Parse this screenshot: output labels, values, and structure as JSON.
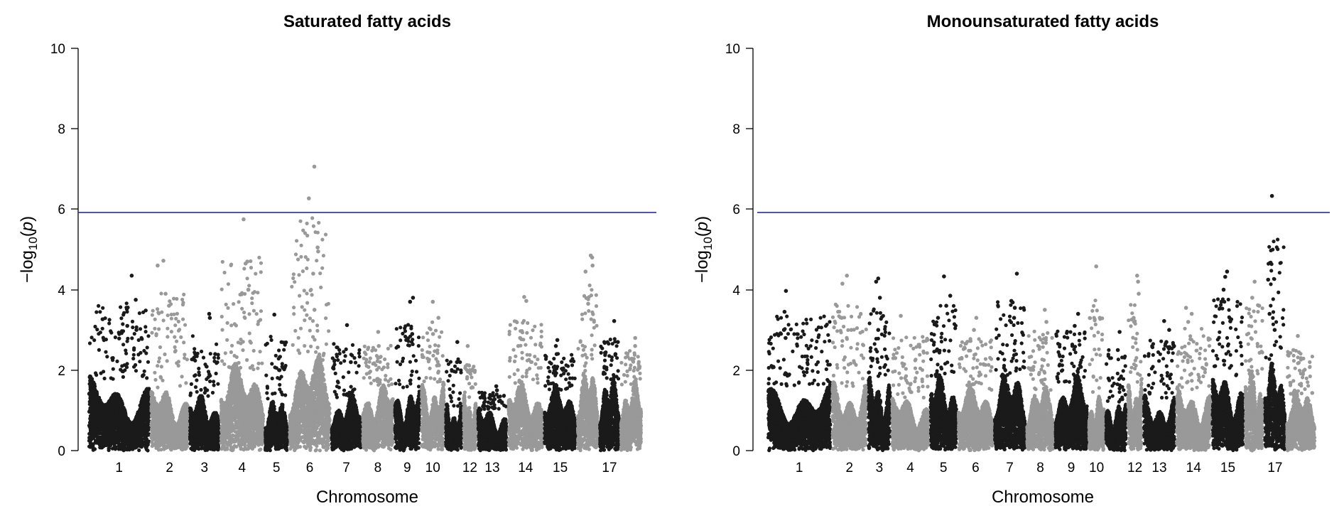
{
  "colors": {
    "odd_chromosome": "#1a1a1a",
    "even_chromosome": "#999999",
    "threshold_line": "#2b2bb0"
  },
  "chart_data": [
    {
      "type": "scatter",
      "title": "Saturated fatty acids",
      "xlabel": "Chromosome",
      "ylabel_prefix": "−log",
      "ylabel_sub": "10",
      "ylabel_arg": "p",
      "ylim": [
        0,
        10
      ],
      "yticks": [
        "0",
        "2",
        "4",
        "6",
        "8",
        "10"
      ],
      "threshold": 5.92,
      "grid": false,
      "chromosome_labels": [
        "1",
        "2",
        "3",
        "4",
        "5",
        "6",
        "7",
        "8",
        "9",
        "10",
        "12",
        "13",
        "14",
        "15",
        "17"
      ],
      "chromosomes": [
        {
          "id": 1,
          "label": "1",
          "start": 0.0,
          "end": 0.112,
          "peak": 4.35,
          "dense_top": 1.7,
          "seed": 11,
          "extra": [
            3.75,
            3.1,
            3.0
          ]
        },
        {
          "id": 2,
          "label": "2",
          "start": 0.112,
          "end": 0.182,
          "peak": 4.72,
          "dense_top": 1.5,
          "seed": 12,
          "extra": [
            4.6,
            3.9,
            3.6
          ]
        },
        {
          "id": 3,
          "label": "3",
          "start": 0.182,
          "end": 0.238,
          "peak": 3.4,
          "dense_top": 1.3,
          "seed": 13,
          "extra": [
            3.3,
            2.4
          ]
        },
        {
          "id": 4,
          "label": "4",
          "start": 0.238,
          "end": 0.318,
          "peak": 5.75,
          "dense_top": 2.0,
          "seed": 14,
          "extra": [
            4.65,
            4.7,
            4.0
          ]
        },
        {
          "id": 5,
          "label": "5",
          "start": 0.318,
          "end": 0.362,
          "peak": 3.38,
          "dense_top": 1.2,
          "seed": 15,
          "extra": [
            2.0
          ]
        },
        {
          "id": 6,
          "label": "6",
          "start": 0.362,
          "end": 0.438,
          "peak": 7.06,
          "dense_top": 2.2,
          "seed": 16,
          "extra": [
            6.27,
            5.05,
            4.95,
            4.4,
            3.5
          ]
        },
        {
          "id": 7,
          "label": "7",
          "start": 0.438,
          "end": 0.494,
          "peak": 3.12,
          "dense_top": 1.3,
          "seed": 17,
          "extra": [
            2.2
          ]
        },
        {
          "id": 8,
          "label": "8",
          "start": 0.494,
          "end": 0.552,
          "peak": 2.95,
          "dense_top": 1.6,
          "seed": 18,
          "extra": [
            2.6
          ]
        },
        {
          "id": 9,
          "label": "9",
          "start": 0.552,
          "end": 0.6,
          "peak": 3.8,
          "dense_top": 1.5,
          "seed": 19,
          "extra": [
            3.7,
            2.9
          ]
        },
        {
          "id": 10,
          "label": "10",
          "start": 0.6,
          "end": 0.644,
          "peak": 3.7,
          "dense_top": 1.7,
          "seed": 20,
          "extra": [
            3.3,
            2.9
          ]
        },
        {
          "id": 11,
          "label": "",
          "start": 0.644,
          "end": 0.676,
          "peak": 2.7,
          "dense_top": 1.1,
          "seed": 21,
          "extra": [
            2.2
          ]
        },
        {
          "id": 12,
          "label": "12",
          "start": 0.676,
          "end": 0.702,
          "peak": 2.6,
          "dense_top": 1.3,
          "seed": 22,
          "extra": [
            2.0
          ]
        },
        {
          "id": 13,
          "label": "13",
          "start": 0.702,
          "end": 0.757,
          "peak": 1.6,
          "dense_top": 1.0,
          "seed": 23,
          "extra": [
            1.5
          ]
        },
        {
          "id": 14,
          "label": "14",
          "start": 0.757,
          "end": 0.822,
          "peak": 3.82,
          "dense_top": 1.6,
          "seed": 24,
          "extra": [
            3.72,
            2.8,
            2.6
          ]
        },
        {
          "id": 15,
          "label": "15",
          "start": 0.822,
          "end": 0.882,
          "peak": 2.75,
          "dense_top": 1.5,
          "seed": 25,
          "extra": [
            2.6,
            2.4
          ]
        },
        {
          "id": 16,
          "label": "",
          "start": 0.882,
          "end": 0.922,
          "peak": 4.85,
          "dense_top": 1.9,
          "seed": 26,
          "extra": [
            4.8,
            4.6,
            4.45,
            3.65
          ]
        },
        {
          "id": 17,
          "label": "17",
          "start": 0.922,
          "end": 0.96,
          "peak": 3.22,
          "dense_top": 1.7,
          "seed": 27,
          "extra": [
            2.7,
            2.4
          ]
        },
        {
          "id": 18,
          "label": "",
          "start": 0.96,
          "end": 1.0,
          "peak": 2.8,
          "dense_top": 1.6,
          "seed": 28,
          "extra": [
            2.6
          ]
        }
      ]
    },
    {
      "type": "scatter",
      "title": "Monounsaturated fatty acids",
      "xlabel": "Chromosome",
      "ylabel_prefix": "−log",
      "ylabel_sub": "10",
      "ylabel_arg": "p",
      "ylim": [
        0,
        10
      ],
      "yticks": [
        "0",
        "2",
        "4",
        "6",
        "8",
        "10"
      ],
      "threshold": 5.92,
      "grid": false,
      "chromosome_labels": [
        "1",
        "2",
        "3",
        "4",
        "5",
        "6",
        "7",
        "8",
        "9",
        "10",
        "12",
        "13",
        "14",
        "15",
        "17"
      ],
      "chromosomes": [
        {
          "id": 1,
          "label": "1",
          "start": 0.0,
          "end": 0.117,
          "peak": 3.97,
          "dense_top": 1.6,
          "seed": 31,
          "extra": [
            3.45,
            3.0,
            2.8
          ]
        },
        {
          "id": 2,
          "label": "2",
          "start": 0.117,
          "end": 0.183,
          "peak": 4.35,
          "dense_top": 1.6,
          "seed": 32,
          "extra": [
            4.15,
            3.3,
            3.0
          ]
        },
        {
          "id": 3,
          "label": "3",
          "start": 0.183,
          "end": 0.226,
          "peak": 4.28,
          "dense_top": 1.8,
          "seed": 33,
          "extra": [
            4.2,
            3.8,
            3.0
          ]
        },
        {
          "id": 4,
          "label": "4",
          "start": 0.226,
          "end": 0.296,
          "peak": 3.35,
          "dense_top": 1.3,
          "seed": 34,
          "extra": [
            2.3
          ]
        },
        {
          "id": 5,
          "label": "5",
          "start": 0.296,
          "end": 0.347,
          "peak": 4.33,
          "dense_top": 1.8,
          "seed": 35,
          "extra": [
            3.85,
            3.6,
            3.3
          ]
        },
        {
          "id": 6,
          "label": "6",
          "start": 0.347,
          "end": 0.413,
          "peak": 3.3,
          "dense_top": 1.5,
          "seed": 36,
          "extra": [
            3.0
          ]
        },
        {
          "id": 7,
          "label": "7",
          "start": 0.413,
          "end": 0.472,
          "peak": 4.4,
          "dense_top": 1.8,
          "seed": 37,
          "extra": [
            3.72,
            3.55,
            3.3
          ]
        },
        {
          "id": 8,
          "label": "8",
          "start": 0.472,
          "end": 0.524,
          "peak": 3.5,
          "dense_top": 1.5,
          "seed": 38,
          "extra": [
            3.2
          ]
        },
        {
          "id": 9,
          "label": "9",
          "start": 0.524,
          "end": 0.585,
          "peak": 3.4,
          "dense_top": 1.7,
          "seed": 39,
          "extra": [
            3.1,
            2.6
          ]
        },
        {
          "id": 10,
          "label": "10",
          "start": 0.585,
          "end": 0.616,
          "peak": 4.58,
          "dense_top": 1.3,
          "seed": 40,
          "extra": [
            3.3
          ]
        },
        {
          "id": 11,
          "label": "",
          "start": 0.616,
          "end": 0.656,
          "peak": 2.95,
          "dense_top": 1.2,
          "seed": 41,
          "extra": [
            2.5
          ]
        },
        {
          "id": 12,
          "label": "12",
          "start": 0.656,
          "end": 0.685,
          "peak": 4.35,
          "dense_top": 1.7,
          "seed": 42,
          "extra": [
            4.2,
            3.9,
            3.3
          ]
        },
        {
          "id": 13,
          "label": "13",
          "start": 0.685,
          "end": 0.745,
          "peak": 3.22,
          "dense_top": 1.3,
          "seed": 43,
          "extra": [
            3.0,
            2.7
          ]
        },
        {
          "id": 14,
          "label": "14",
          "start": 0.745,
          "end": 0.81,
          "peak": 3.55,
          "dense_top": 1.5,
          "seed": 44,
          "extra": [
            3.4,
            3.2
          ]
        },
        {
          "id": 15,
          "label": "15",
          "start": 0.81,
          "end": 0.87,
          "peak": 4.45,
          "dense_top": 1.8,
          "seed": 45,
          "extra": [
            4.32,
            4.0,
            3.7
          ]
        },
        {
          "id": 16,
          "label": "",
          "start": 0.87,
          "end": 0.906,
          "peak": 4.2,
          "dense_top": 1.9,
          "seed": 46,
          "extra": [
            3.8,
            3.6
          ]
        },
        {
          "id": 17,
          "label": "17",
          "start": 0.906,
          "end": 0.946,
          "peak": 6.33,
          "dense_top": 2.0,
          "seed": 47,
          "extra": [
            4.25,
            3.4,
            3.0
          ]
        },
        {
          "id": 18,
          "label": "",
          "start": 0.946,
          "end": 1.0,
          "peak": 2.85,
          "dense_top": 1.4,
          "seed": 48,
          "extra": [
            2.5
          ]
        }
      ]
    }
  ]
}
